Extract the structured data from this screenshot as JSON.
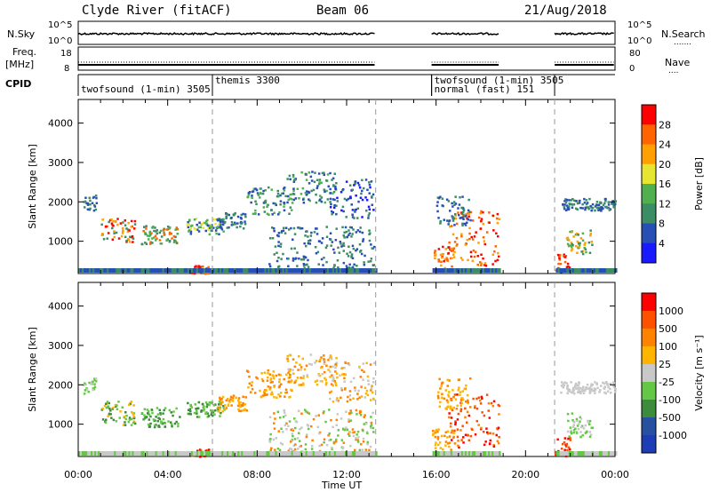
{
  "header": {
    "station": "Clyde River (fitACF)",
    "beam": "Beam 06",
    "date": "21/Aug/2018"
  },
  "strip_labels": {
    "nsky": "N.Sky",
    "nsearch": "N.Search",
    "freq_line1": "Freq.",
    "freq_line2": "[MHz]",
    "nave": "Nave",
    "cpid": "CPID",
    "sky_tick_top": "10^5",
    "sky_tick_bottom": "10^0",
    "freq_tick_top": "18",
    "freq_tick_bottom": "8",
    "nave_tick_top": "80",
    "nave_tick_bottom": "0"
  },
  "cpid_segments": [
    {
      "label": "twofsound (1-min) 3505",
      "start_h": 0.0,
      "row": 1
    },
    {
      "label": "themis 3300",
      "start_h": 6.0,
      "row": 0
    },
    {
      "label": "twofsound (1-min) 3505",
      "start_h": 15.8,
      "row": 0
    },
    {
      "label": "normal (fast) 151",
      "start_h": 15.8,
      "row": 1
    }
  ],
  "chart_data": [
    {
      "type": "heatmap",
      "name": "power",
      "ylabel": "Slant Range [km]",
      "xlabel": "Time UT",
      "x_ticks": [
        "00:00",
        "04:00",
        "08:00",
        "12:00",
        "16:00",
        "20:00",
        "00:00"
      ],
      "y_ticks": [
        1000,
        2000,
        3000,
        4000
      ],
      "xlim_hours": [
        0,
        24
      ],
      "ylim_km": [
        180,
        4600
      ],
      "colorbar_label": "Power [dB]",
      "colorbar_ticks": [
        4,
        8,
        12,
        16,
        20,
        24,
        28
      ],
      "colorbar_range": [
        0,
        30
      ]
    },
    {
      "type": "heatmap",
      "name": "velocity",
      "ylabel": "Slant Range [km]",
      "xlabel": "Time UT",
      "x_ticks": [
        "00:00",
        "04:00",
        "08:00",
        "12:00",
        "16:00",
        "20:00",
        "00:00"
      ],
      "y_ticks": [
        1000,
        2000,
        3000,
        4000
      ],
      "xlim_hours": [
        0,
        24
      ],
      "ylim_km": [
        180,
        4600
      ],
      "colorbar_label": "Velocity [m s⁻¹]",
      "colorbar_ticks": [
        "1000",
        "500",
        "100",
        "25",
        "-25",
        "-100",
        "-500",
        "-1000"
      ]
    }
  ],
  "gaps_hours": [
    [
      13.3,
      15.8
    ],
    [
      18.85,
      21.3
    ]
  ],
  "colors": {
    "power": [
      "#1a1aff",
      "#2850b4",
      "#3c8c64",
      "#50b050",
      "#e6e632",
      "#ffa000",
      "#ff6400",
      "#ff0000"
    ],
    "velocity": [
      "#1e3cb4",
      "#2850a0",
      "#3c8c3c",
      "#64c846",
      "#c8c8c8",
      "#ffb400",
      "#ff8200",
      "#ff5000",
      "#ff0000"
    ]
  }
}
